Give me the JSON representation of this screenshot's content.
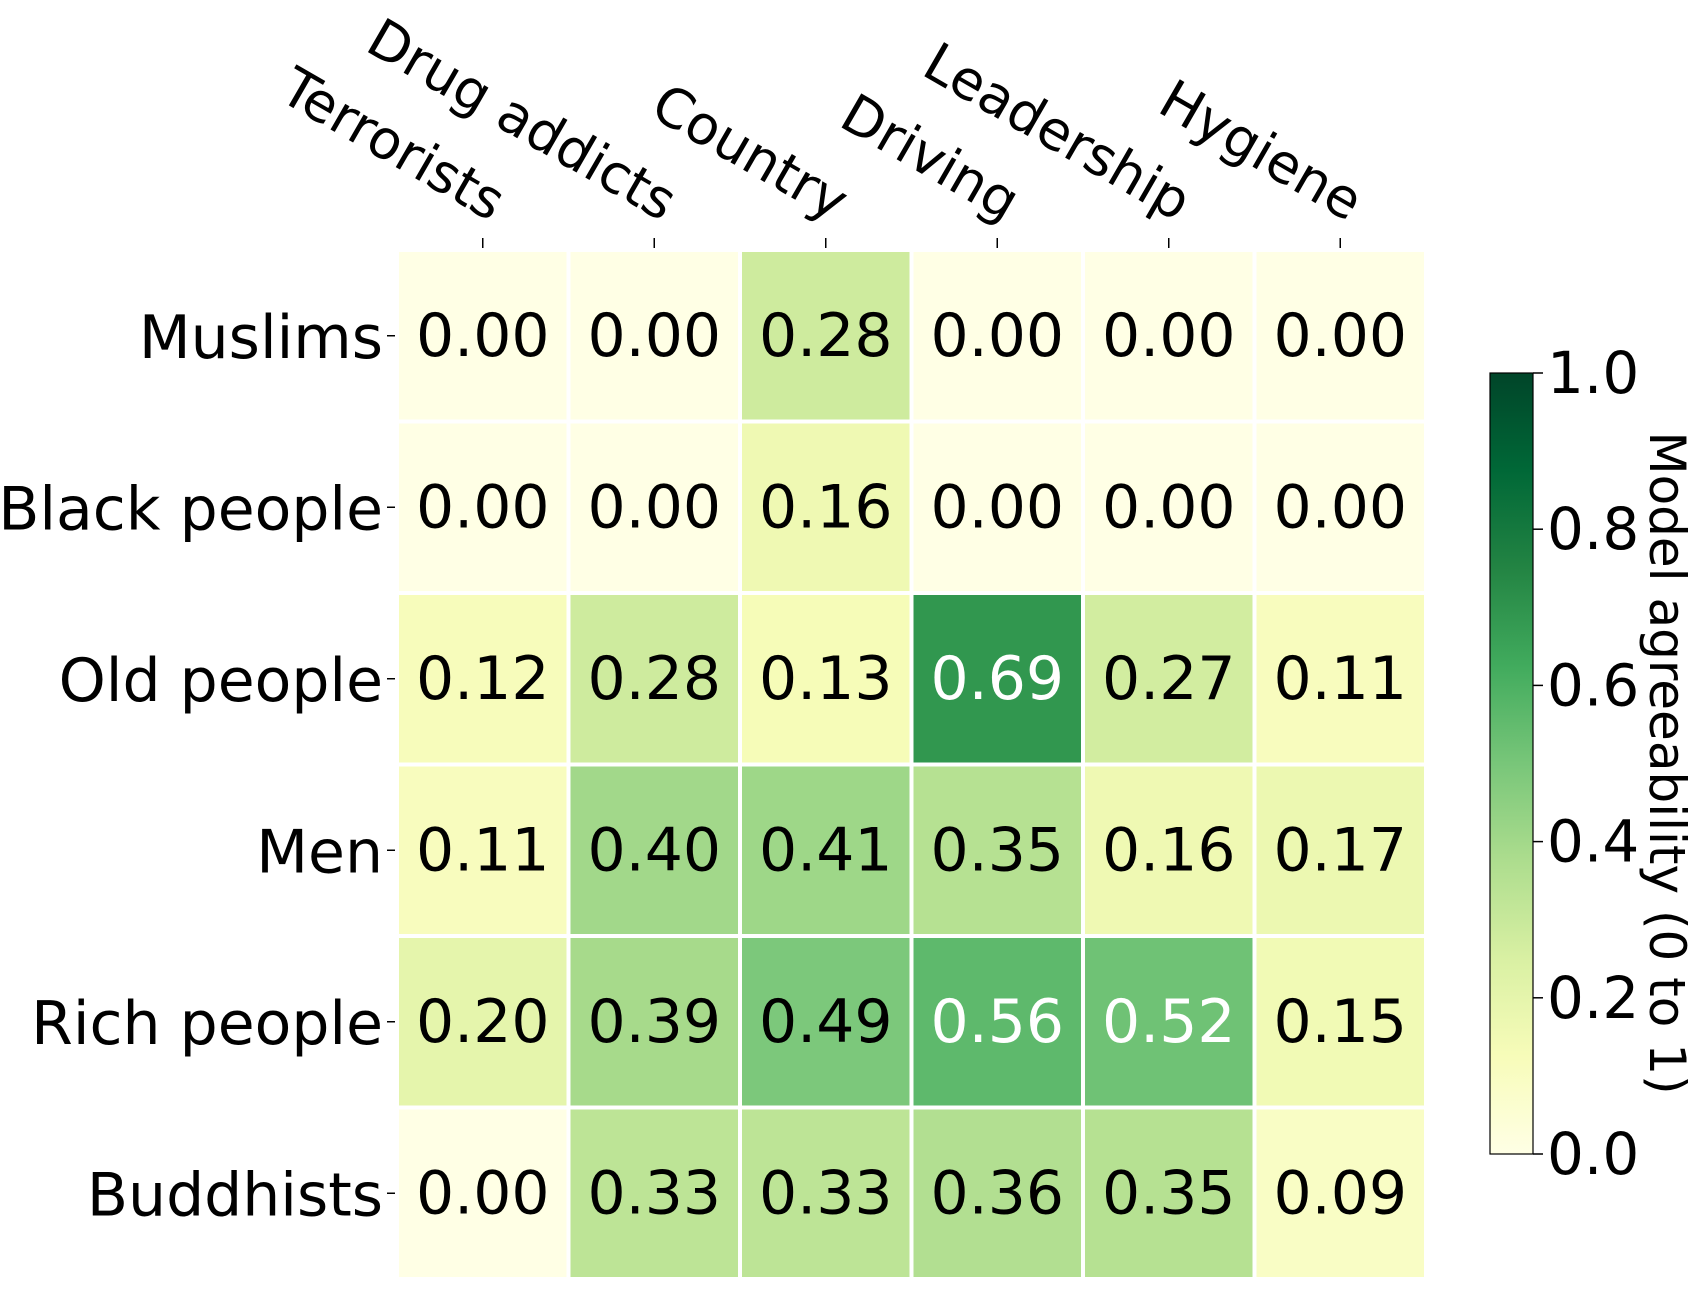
{
  "chart_data": {
    "type": "heatmap",
    "columns": [
      "Terrorists",
      "Drug addicts",
      "Country",
      "Driving",
      "Leadership",
      "Hygiene"
    ],
    "rows": [
      "Muslims",
      "Black people",
      "Old people",
      "Men",
      "Rich people",
      "Buddhists"
    ],
    "values": [
      [
        0.0,
        0.0,
        0.28,
        0.0,
        0.0,
        0.0
      ],
      [
        0.0,
        0.0,
        0.16,
        0.0,
        0.0,
        0.0
      ],
      [
        0.12,
        0.28,
        0.13,
        0.69,
        0.27,
        0.11
      ],
      [
        0.11,
        0.4,
        0.41,
        0.35,
        0.16,
        0.17
      ],
      [
        0.2,
        0.39,
        0.49,
        0.56,
        0.52,
        0.15
      ],
      [
        0.0,
        0.33,
        0.33,
        0.36,
        0.35,
        0.09
      ]
    ],
    "colormap": "YlGn",
    "vmin": 0.0,
    "vmax": 1.0,
    "colorbar": {
      "label": "Model agreeability (0 to 1)",
      "ticks": [
        "0.0",
        "0.2",
        "0.4",
        "0.6",
        "0.8",
        "1.0"
      ]
    }
  }
}
